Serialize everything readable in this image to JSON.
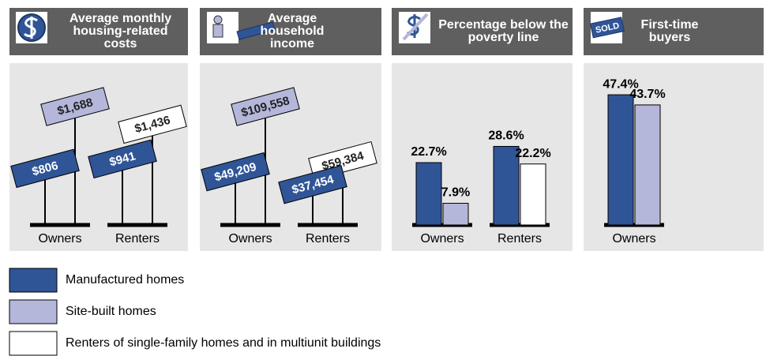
{
  "legend": [
    {
      "name": "Manufactured homes",
      "color": "#2f5597"
    },
    {
      "name": "Site-built homes",
      "color": "#b4b7da"
    },
    {
      "name": "Renters of single-family homes and in multiunit buildings",
      "color": "#ffffff"
    }
  ],
  "chart_data": [
    {
      "type": "sign",
      "title": "Average monthly housing-related costs",
      "categories": [
        "Owners",
        "Renters"
      ],
      "values": [
        [
          806,
          1688,
          null
        ],
        [
          941,
          null,
          1436
        ]
      ],
      "value_labels": [
        [
          "$806",
          "$1,688",
          null
        ],
        [
          "$941",
          null,
          "$1,436"
        ]
      ]
    },
    {
      "type": "sign",
      "title": "Average household income",
      "categories": [
        "Owners",
        "Renters"
      ],
      "values": [
        [
          49209,
          109558,
          null
        ],
        [
          37454,
          null,
          59384
        ]
      ],
      "value_labels": [
        [
          "$49,209",
          "$109,558",
          null
        ],
        [
          "$37,454",
          null,
          "$59,384"
        ]
      ]
    },
    {
      "type": "bar",
      "title": "Percentage below the poverty line",
      "categories": [
        "Owners",
        "Renters"
      ],
      "values": [
        [
          22.7,
          7.9,
          null
        ],
        [
          28.6,
          null,
          22.2
        ]
      ],
      "value_labels": [
        [
          "22.7%",
          "7.9%",
          null
        ],
        [
          "28.6%",
          null,
          "22.2%"
        ]
      ]
    },
    {
      "type": "bar",
      "title": "First-time buyers",
      "categories": [
        "Owners"
      ],
      "values": [
        [
          47.4,
          43.7,
          null
        ]
      ],
      "value_labels": [
        [
          "47.4%",
          "43.7%",
          null
        ]
      ]
    }
  ]
}
